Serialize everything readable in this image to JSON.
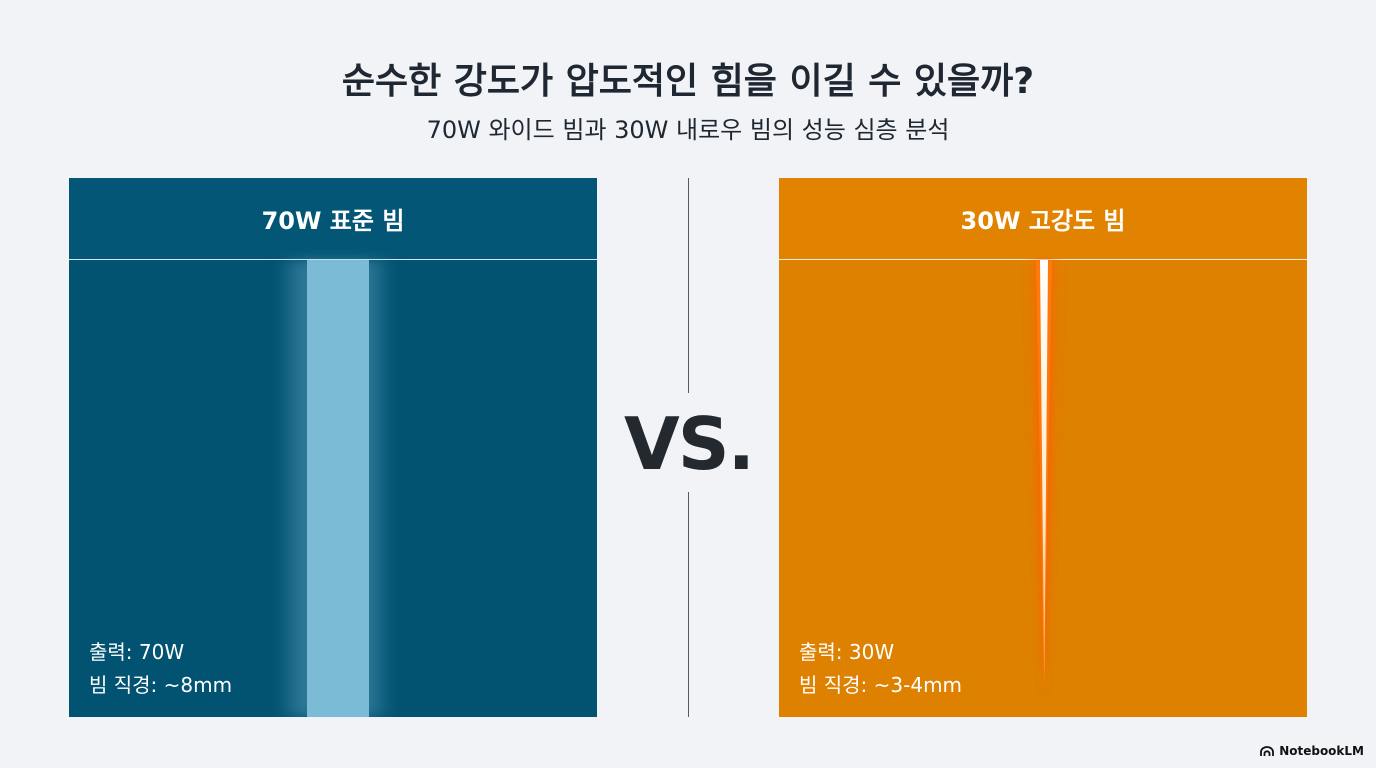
{
  "header": {
    "title": "순수한 강도가 압도적인 힘을 이길 수 있을까?",
    "subtitle": "70W 와이드 빔과 30W 내로우 빔의 성능 심층 분석"
  },
  "panels": [
    {
      "title": "70W 표준 빔",
      "output": "출력: 70W",
      "diameter": "빔 직경: ~8mm",
      "color": "#025272",
      "beam_color": "#7bbbd6"
    },
    {
      "title": "30W 고강도 빔",
      "output": "출력: 30W",
      "diameter": "빔 직경: ~3-4mm",
      "color": "#de8000",
      "beam_color": "#fff6e0"
    }
  ],
  "vs_label": "VS.",
  "brand": {
    "name": "NotebookLM",
    "icon": "notebooklm-logo-icon"
  }
}
